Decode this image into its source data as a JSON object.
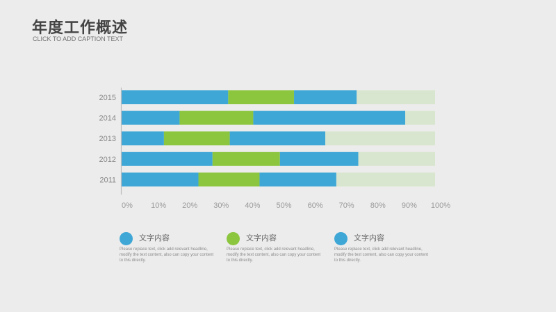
{
  "header": {
    "title": "年度工作概述",
    "subtitle": "CLICK TO ADD CAPTION TEXT"
  },
  "colors": {
    "blue": "#3fa7d6",
    "green": "#8cc63f",
    "remainder": "#d9e6cf",
    "axis_text": "#999999"
  },
  "chart_data": {
    "type": "bar",
    "orientation": "horizontal",
    "stacked": true,
    "categories": [
      "2015",
      "2014",
      "2013",
      "2012",
      "2011"
    ],
    "series": [
      {
        "color": "#3fa7d6",
        "values": [
          34,
          18.5,
          13.5,
          29,
          24.5
        ]
      },
      {
        "color": "#8cc63f",
        "values": [
          21,
          23.5,
          21,
          21.5,
          19.5
        ]
      },
      {
        "color": "#3fa7d6",
        "values": [
          20,
          48.5,
          30.5,
          25,
          24.5
        ]
      },
      {
        "color": "#d9e6cf",
        "values": [
          25,
          9.5,
          35,
          24.5,
          31.5
        ]
      }
    ],
    "xlim": [
      0,
      100
    ],
    "xticks": [
      "0%",
      "10%",
      "20%",
      "30%",
      "40%",
      "50%",
      "60%",
      "70%",
      "80%",
      "90%",
      "100%"
    ],
    "grid": false
  },
  "legend": [
    {
      "color": "#3fa7d6",
      "label": "文字内容",
      "desc": "Please replace text, click add relevant headline, modify the text content, also can copy your content to this directly."
    },
    {
      "color": "#8cc63f",
      "label": "文字内容",
      "desc": "Please replace text, click add relevant headline, modify the text content, also can copy your content to this directly."
    },
    {
      "color": "#3fa7d6",
      "label": "文字内容",
      "desc": "Please replace text, click add relevant headline, modify the text content, also can copy your content to this directly."
    }
  ]
}
